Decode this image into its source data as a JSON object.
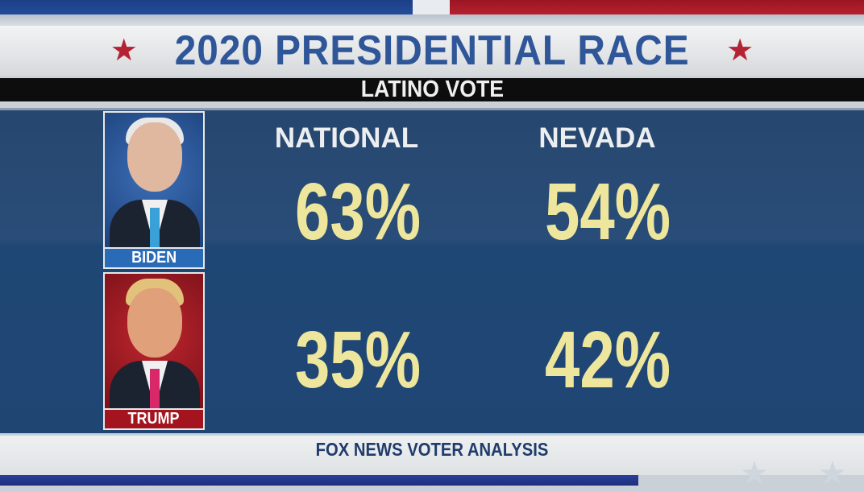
{
  "header": {
    "title": "2020 PRESIDENTIAL RACE",
    "subtitle": "LATINO VOTE"
  },
  "columns": [
    "NATIONAL",
    "NEVADA"
  ],
  "candidates": [
    {
      "name": "BIDEN",
      "label_color": "#2a6bb8",
      "values": [
        "63%",
        "54%"
      ]
    },
    {
      "name": "TRUMP",
      "label_color": "#a3141f",
      "values": [
        "35%",
        "42%"
      ]
    }
  ],
  "footer": {
    "source": "FOX NEWS VOTER ANALYSIS"
  },
  "colors": {
    "title": "#2f5699",
    "numbers": "#ede69c",
    "panel": "#1f4673",
    "star": "#b52233"
  }
}
